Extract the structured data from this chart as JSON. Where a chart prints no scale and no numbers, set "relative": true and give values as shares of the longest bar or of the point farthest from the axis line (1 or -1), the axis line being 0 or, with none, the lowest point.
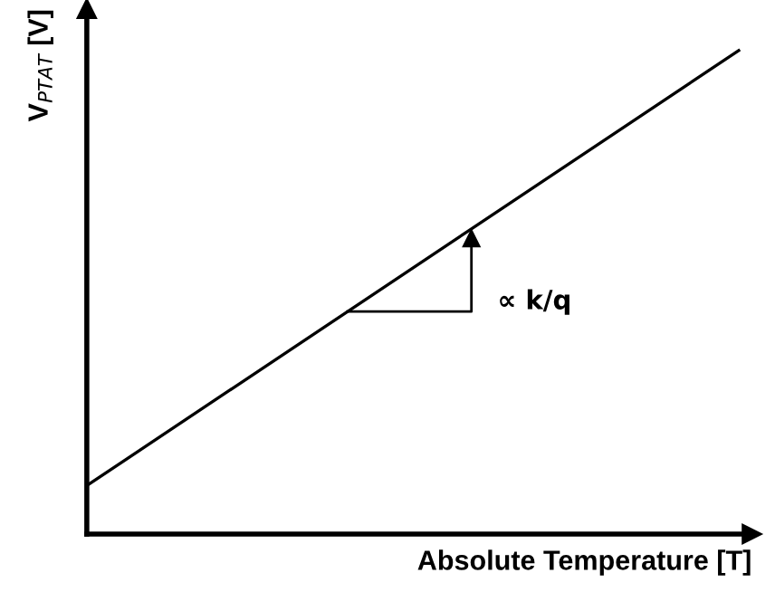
{
  "chart_data": {
    "type": "line",
    "relative": true,
    "xlabel": "Absolute Temperature [T]",
    "ylabel": "V$_{PTAT}$ [V]",
    "categories": [
      null,
      null
    ],
    "series": [
      {
        "color": "#000000",
        "values": [
          0.1,
          1
        ]
      }
    ],
    "annotations": [
      "∝ k/q"
    ],
    "marker": "none",
    "line_style": "solid",
    "grid": false,
    "legend": false
  }
}
